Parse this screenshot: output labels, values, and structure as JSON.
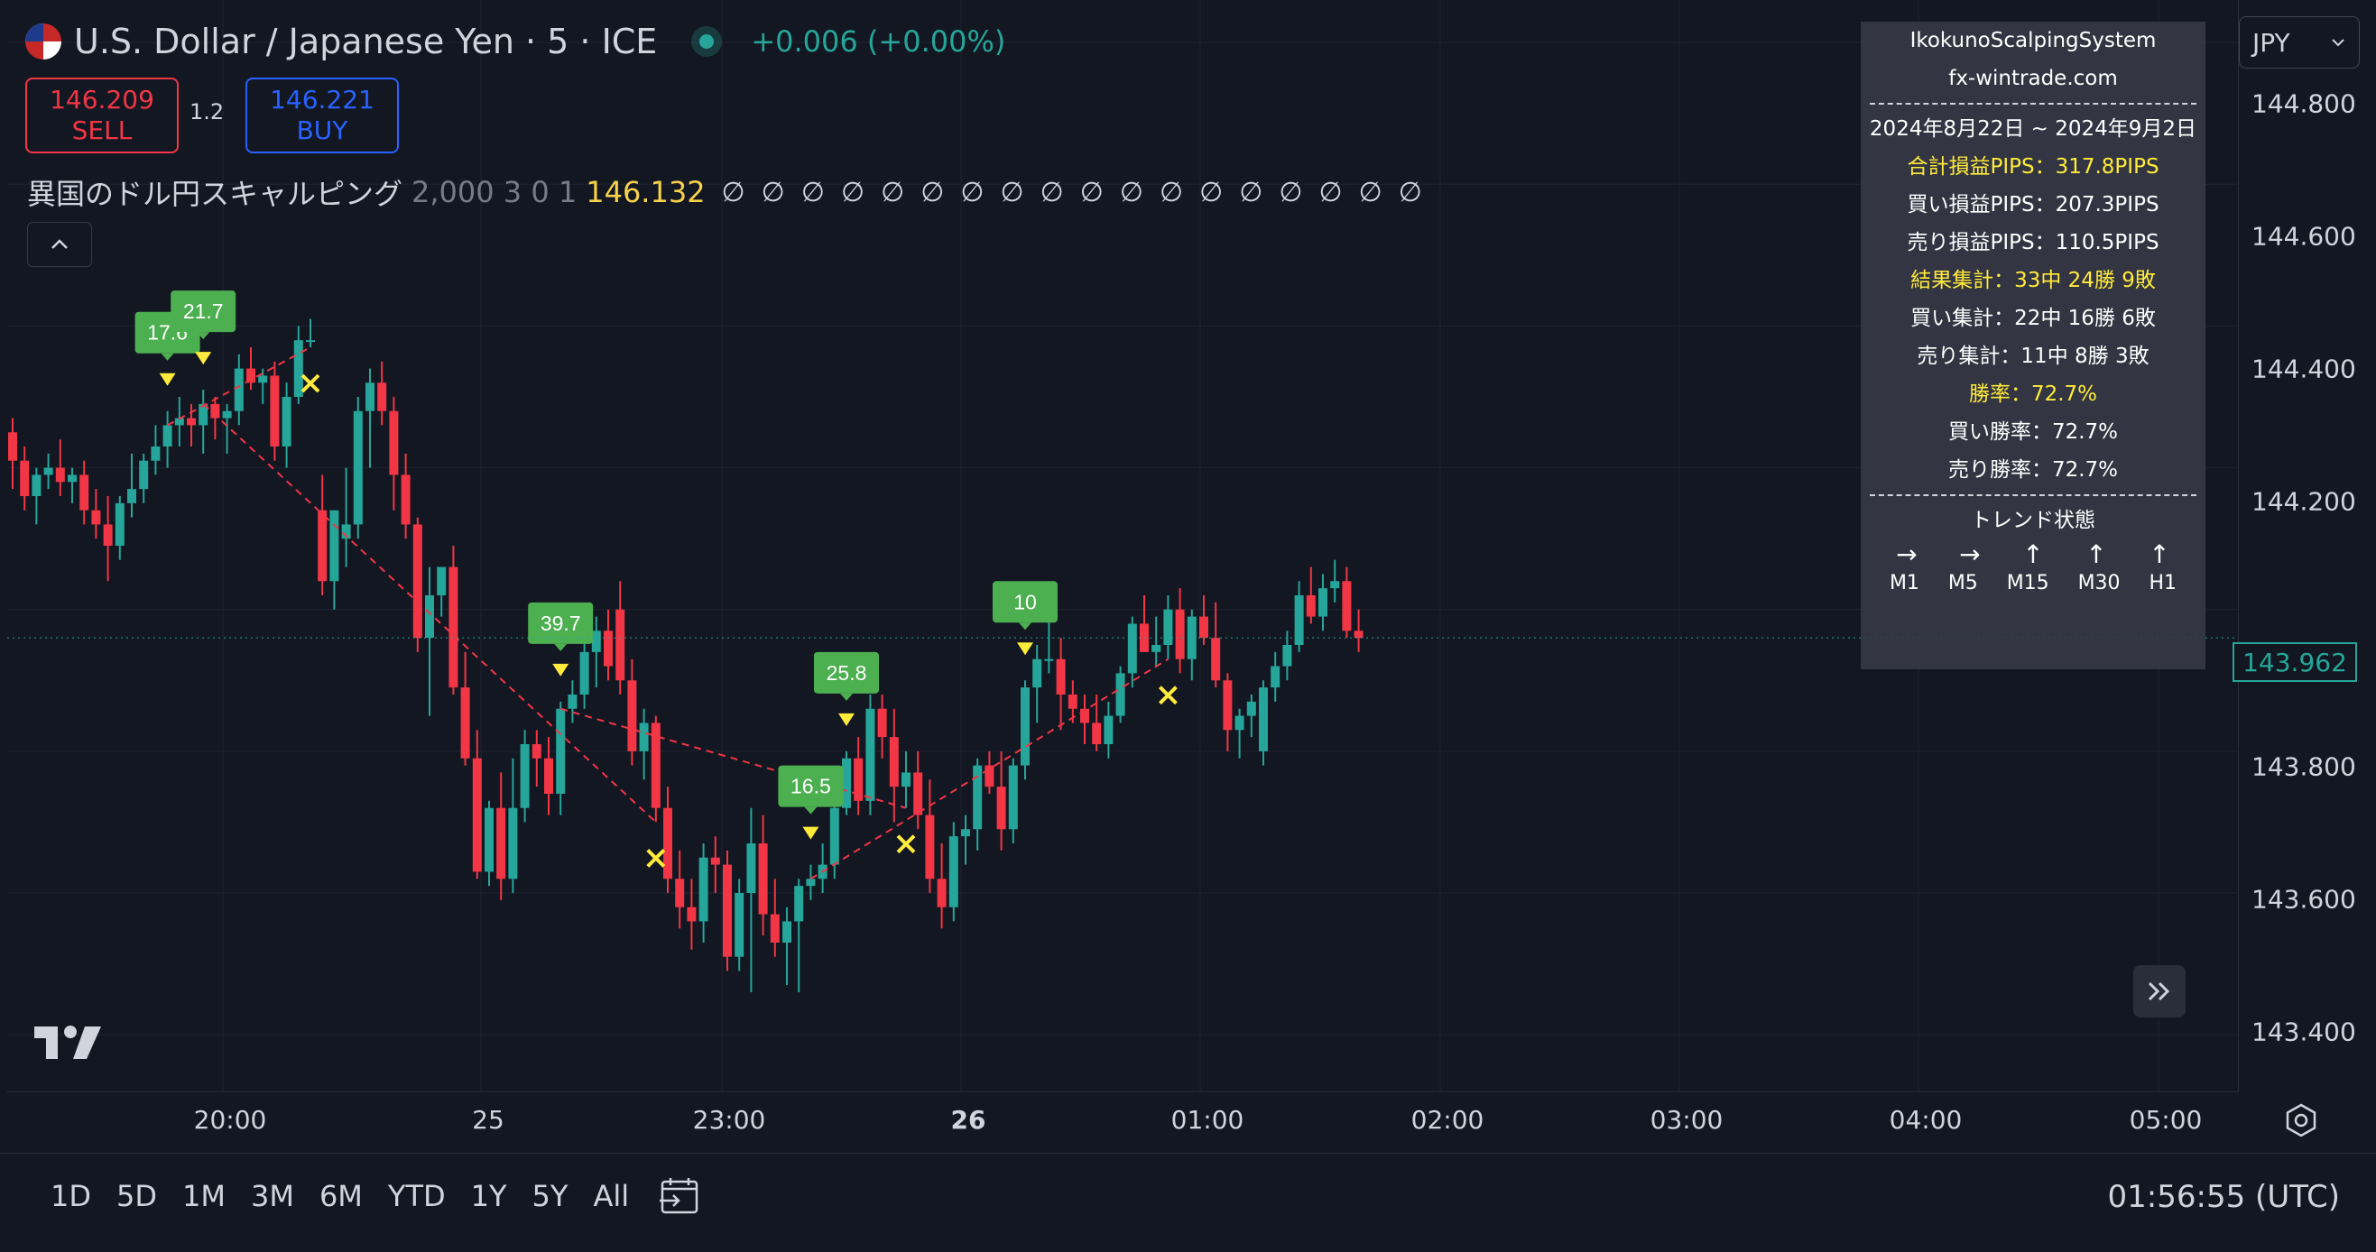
{
  "header": {
    "symbol_title": "U.S. Dollar / Japanese Yen · 5 · ICE",
    "change": "+0.006 (+0.00%)",
    "sell_price": "146.209",
    "sell_label": "SELL",
    "spread": "1.2",
    "buy_price": "146.221",
    "buy_label": "BUY"
  },
  "indicator": {
    "name": "異国のドル円スキャルピング",
    "params": "2,000 3 0 1",
    "value": "146.132",
    "na_values": "∅∅∅∅∅∅∅∅∅∅∅∅∅∅∅∅∅∅",
    "collapse_icon": "chevron-up-icon"
  },
  "currency": {
    "label": "JPY"
  },
  "price_axis": {
    "ticks": [
      "144.800",
      "144.600",
      "144.400",
      "144.200",
      "144.000",
      "143.800",
      "143.600",
      "143.400"
    ],
    "current_price": "143.962"
  },
  "time_axis": {
    "ticks": [
      {
        "label": "20:00",
        "bold": false
      },
      {
        "label": "25",
        "bold": false
      },
      {
        "label": "23:00",
        "bold": false
      },
      {
        "label": "26",
        "bold": true
      },
      {
        "label": "01:00",
        "bold": false
      },
      {
        "label": "02:00",
        "bold": false
      },
      {
        "label": "03:00",
        "bold": false
      },
      {
        "label": "04:00",
        "bold": false
      },
      {
        "label": "05:00",
        "bold": false
      }
    ]
  },
  "bottom_bar": {
    "ranges": [
      "1D",
      "5D",
      "1M",
      "3M",
      "6M",
      "YTD",
      "1Y",
      "5Y",
      "All"
    ],
    "clock": "01:56:55 (UTC)"
  },
  "stats_panel": {
    "title": "IkokunoScalpingSystem",
    "site": "fx-wintrade.com",
    "period": "2024年8月22日 ~ 2024年9月2日",
    "total_pips": "合計損益PIPS：317.8PIPS",
    "buy_pips": "買い損益PIPS：207.3PIPS",
    "sell_pips": "売り損益PIPS：110.5PIPS",
    "result_total": "結果集計：33中 24勝 9敗",
    "buy_total": "買い集計：22中 16勝 6敗",
    "sell_total": "売り集計：11中 8勝 3敗",
    "win_rate": "勝率：72.7%",
    "buy_win_rate": "買い勝率：72.7%",
    "sell_win_rate": "売り勝率：72.7%",
    "trend_title": "トレンド状態",
    "trend_arrows": [
      "→",
      "→",
      "↑",
      "↑",
      "↑"
    ],
    "trend_labels": [
      "M1",
      "M5",
      "M15",
      "M30",
      "H1"
    ]
  },
  "chart_data": {
    "type": "candlestick",
    "ylim": [
      143.32,
      144.86
    ],
    "up_color": "#26a69a",
    "down_color": "#f23645",
    "candles": [
      [
        144.25,
        144.27,
        144.17,
        144.21
      ],
      [
        144.21,
        144.23,
        144.14,
        144.16
      ],
      [
        144.16,
        144.2,
        144.12,
        144.19
      ],
      [
        144.19,
        144.22,
        144.17,
        144.2
      ],
      [
        144.2,
        144.24,
        144.16,
        144.18
      ],
      [
        144.18,
        144.2,
        144.15,
        144.19
      ],
      [
        144.19,
        144.21,
        144.12,
        144.14
      ],
      [
        144.14,
        144.17,
        144.1,
        144.12
      ],
      [
        144.12,
        144.16,
        144.04,
        144.09
      ],
      [
        144.09,
        144.16,
        144.07,
        144.15
      ],
      [
        144.15,
        144.22,
        144.13,
        144.17
      ],
      [
        144.17,
        144.22,
        144.15,
        144.21
      ],
      [
        144.21,
        144.26,
        144.19,
        144.23
      ],
      [
        144.23,
        144.28,
        144.2,
        144.26
      ],
      [
        144.26,
        144.3,
        144.23,
        144.27
      ],
      [
        144.27,
        144.29,
        144.23,
        144.26
      ],
      [
        144.26,
        144.31,
        144.22,
        144.29
      ],
      [
        144.29,
        144.3,
        144.24,
        144.27
      ],
      [
        144.27,
        144.29,
        144.22,
        144.28
      ],
      [
        144.28,
        144.36,
        144.26,
        144.34
      ],
      [
        144.34,
        144.37,
        144.31,
        144.32
      ],
      [
        144.32,
        144.34,
        144.29,
        144.33
      ],
      [
        144.33,
        144.35,
        144.21,
        144.23
      ],
      [
        144.23,
        144.32,
        144.2,
        144.3
      ],
      [
        144.3,
        144.4,
        144.29,
        144.38
      ],
      [
        144.38,
        144.41,
        144.37,
        144.38
      ],
      [
        144.14,
        144.19,
        144.02,
        144.04
      ],
      [
        144.04,
        144.14,
        144.0,
        144.14
      ],
      [
        144.1,
        144.2,
        144.06,
        144.12
      ],
      [
        144.12,
        144.3,
        144.1,
        144.28
      ],
      [
        144.28,
        144.34,
        144.2,
        144.32
      ],
      [
        144.32,
        144.35,
        144.26,
        144.28
      ],
      [
        144.28,
        144.3,
        144.14,
        144.19
      ],
      [
        144.19,
        144.22,
        144.1,
        144.12
      ],
      [
        144.12,
        144.13,
        143.94,
        143.96
      ],
      [
        143.96,
        144.06,
        143.85,
        144.02
      ],
      [
        144.02,
        144.05,
        143.99,
        144.06
      ],
      [
        144.06,
        144.09,
        143.88,
        143.89
      ],
      [
        143.89,
        143.94,
        143.78,
        143.79
      ],
      [
        143.79,
        143.83,
        143.62,
        143.63
      ],
      [
        143.63,
        143.73,
        143.61,
        143.72
      ],
      [
        143.72,
        143.77,
        143.59,
        143.62
      ],
      [
        143.62,
        143.79,
        143.6,
        143.72
      ],
      [
        143.72,
        143.83,
        143.7,
        143.81
      ],
      [
        143.81,
        143.83,
        143.75,
        143.79
      ],
      [
        143.79,
        143.82,
        143.71,
        143.74
      ],
      [
        143.74,
        143.87,
        143.71,
        143.86
      ],
      [
        143.86,
        143.9,
        143.84,
        143.88
      ],
      [
        143.88,
        143.96,
        143.86,
        143.94
      ],
      [
        143.94,
        143.99,
        143.89,
        143.97
      ],
      [
        143.97,
        144.0,
        143.9,
        143.92
      ],
      [
        144.0,
        144.04,
        143.88,
        143.9
      ],
      [
        143.9,
        143.93,
        143.78,
        143.8
      ],
      [
        143.8,
        143.86,
        143.76,
        143.84
      ],
      [
        143.84,
        143.85,
        143.7,
        143.72
      ],
      [
        143.72,
        143.75,
        143.6,
        143.62
      ],
      [
        143.62,
        143.66,
        143.55,
        143.58
      ],
      [
        143.58,
        143.62,
        143.52,
        143.56
      ],
      [
        143.56,
        143.67,
        143.53,
        143.65
      ],
      [
        143.65,
        143.68,
        143.6,
        143.64
      ],
      [
        143.64,
        143.66,
        143.49,
        143.51
      ],
      [
        143.51,
        143.62,
        143.49,
        143.6
      ],
      [
        143.6,
        143.72,
        143.46,
        143.67
      ],
      [
        143.67,
        143.71,
        143.54,
        143.57
      ],
      [
        143.57,
        143.62,
        143.51,
        143.53
      ],
      [
        143.53,
        143.58,
        143.47,
        143.56
      ],
      [
        143.56,
        143.62,
        143.46,
        143.61
      ],
      [
        143.61,
        143.64,
        143.59,
        143.62
      ],
      [
        143.62,
        143.67,
        143.6,
        143.64
      ],
      [
        143.64,
        143.73,
        143.62,
        143.72
      ],
      [
        143.72,
        143.8,
        143.71,
        143.79
      ],
      [
        143.79,
        143.82,
        143.71,
        143.73
      ],
      [
        143.73,
        143.88,
        143.71,
        143.86
      ],
      [
        143.86,
        143.88,
        143.79,
        143.82
      ],
      [
        143.82,
        143.86,
        143.7,
        143.75
      ],
      [
        143.75,
        143.8,
        143.72,
        143.77
      ],
      [
        143.77,
        143.8,
        143.69,
        143.71
      ],
      [
        143.71,
        143.76,
        143.6,
        143.62
      ],
      [
        143.62,
        143.67,
        143.55,
        143.58
      ],
      [
        143.58,
        143.7,
        143.56,
        143.68
      ],
      [
        143.68,
        143.71,
        143.64,
        143.69
      ],
      [
        143.69,
        143.79,
        143.66,
        143.78
      ],
      [
        143.78,
        143.8,
        143.74,
        143.75
      ],
      [
        143.75,
        143.8,
        143.66,
        143.69
      ],
      [
        143.69,
        143.79,
        143.67,
        143.78
      ],
      [
        143.78,
        143.9,
        143.76,
        143.89
      ],
      [
        143.89,
        143.95,
        143.84,
        143.93
      ],
      [
        143.93,
        143.99,
        143.91,
        143.93
      ],
      [
        143.93,
        143.96,
        143.83,
        143.88
      ],
      [
        143.88,
        143.9,
        143.84,
        143.86
      ],
      [
        143.86,
        143.88,
        143.81,
        143.84
      ],
      [
        143.84,
        143.88,
        143.8,
        143.81
      ],
      [
        143.81,
        143.87,
        143.79,
        143.85
      ],
      [
        143.85,
        143.92,
        143.84,
        143.91
      ],
      [
        143.91,
        143.99,
        143.89,
        143.98
      ],
      [
        143.98,
        144.02,
        143.94,
        143.94
      ],
      [
        143.94,
        143.99,
        143.92,
        143.95
      ],
      [
        143.95,
        144.02,
        143.93,
        144.0
      ],
      [
        144.0,
        144.03,
        143.91,
        143.93
      ],
      [
        143.93,
        144.0,
        143.9,
        143.99
      ],
      [
        143.99,
        144.02,
        143.95,
        143.96
      ],
      [
        143.96,
        144.01,
        143.89,
        143.9
      ],
      [
        143.9,
        143.91,
        143.8,
        143.83
      ],
      [
        143.83,
        143.86,
        143.79,
        143.85
      ],
      [
        143.85,
        143.88,
        143.82,
        143.87
      ],
      [
        143.8,
        143.9,
        143.78,
        143.89
      ],
      [
        143.89,
        143.94,
        143.87,
        143.92
      ],
      [
        143.92,
        143.97,
        143.9,
        143.95
      ],
      [
        143.95,
        144.04,
        143.94,
        144.02
      ],
      [
        144.02,
        144.06,
        143.98,
        143.99
      ],
      [
        143.99,
        144.05,
        143.97,
        144.03
      ],
      [
        144.03,
        144.07,
        144.01,
        144.04
      ],
      [
        144.04,
        144.06,
        143.96,
        143.97
      ],
      [
        143.97,
        144.0,
        143.94,
        143.96
      ]
    ],
    "signals": [
      {
        "candle": 13,
        "label": "17.6",
        "result": "win"
      },
      {
        "candle": 16,
        "label": "21.7",
        "result": "win"
      },
      {
        "candle": 46,
        "label": "39.7",
        "result": "win"
      },
      {
        "candle": 67,
        "label": "16.5",
        "result": "win"
      },
      {
        "candle": 70,
        "label": "25.8",
        "result": "win"
      },
      {
        "candle": 85,
        "label": "10",
        "result": "win"
      }
    ],
    "exits": [
      25,
      54,
      75,
      97
    ]
  }
}
